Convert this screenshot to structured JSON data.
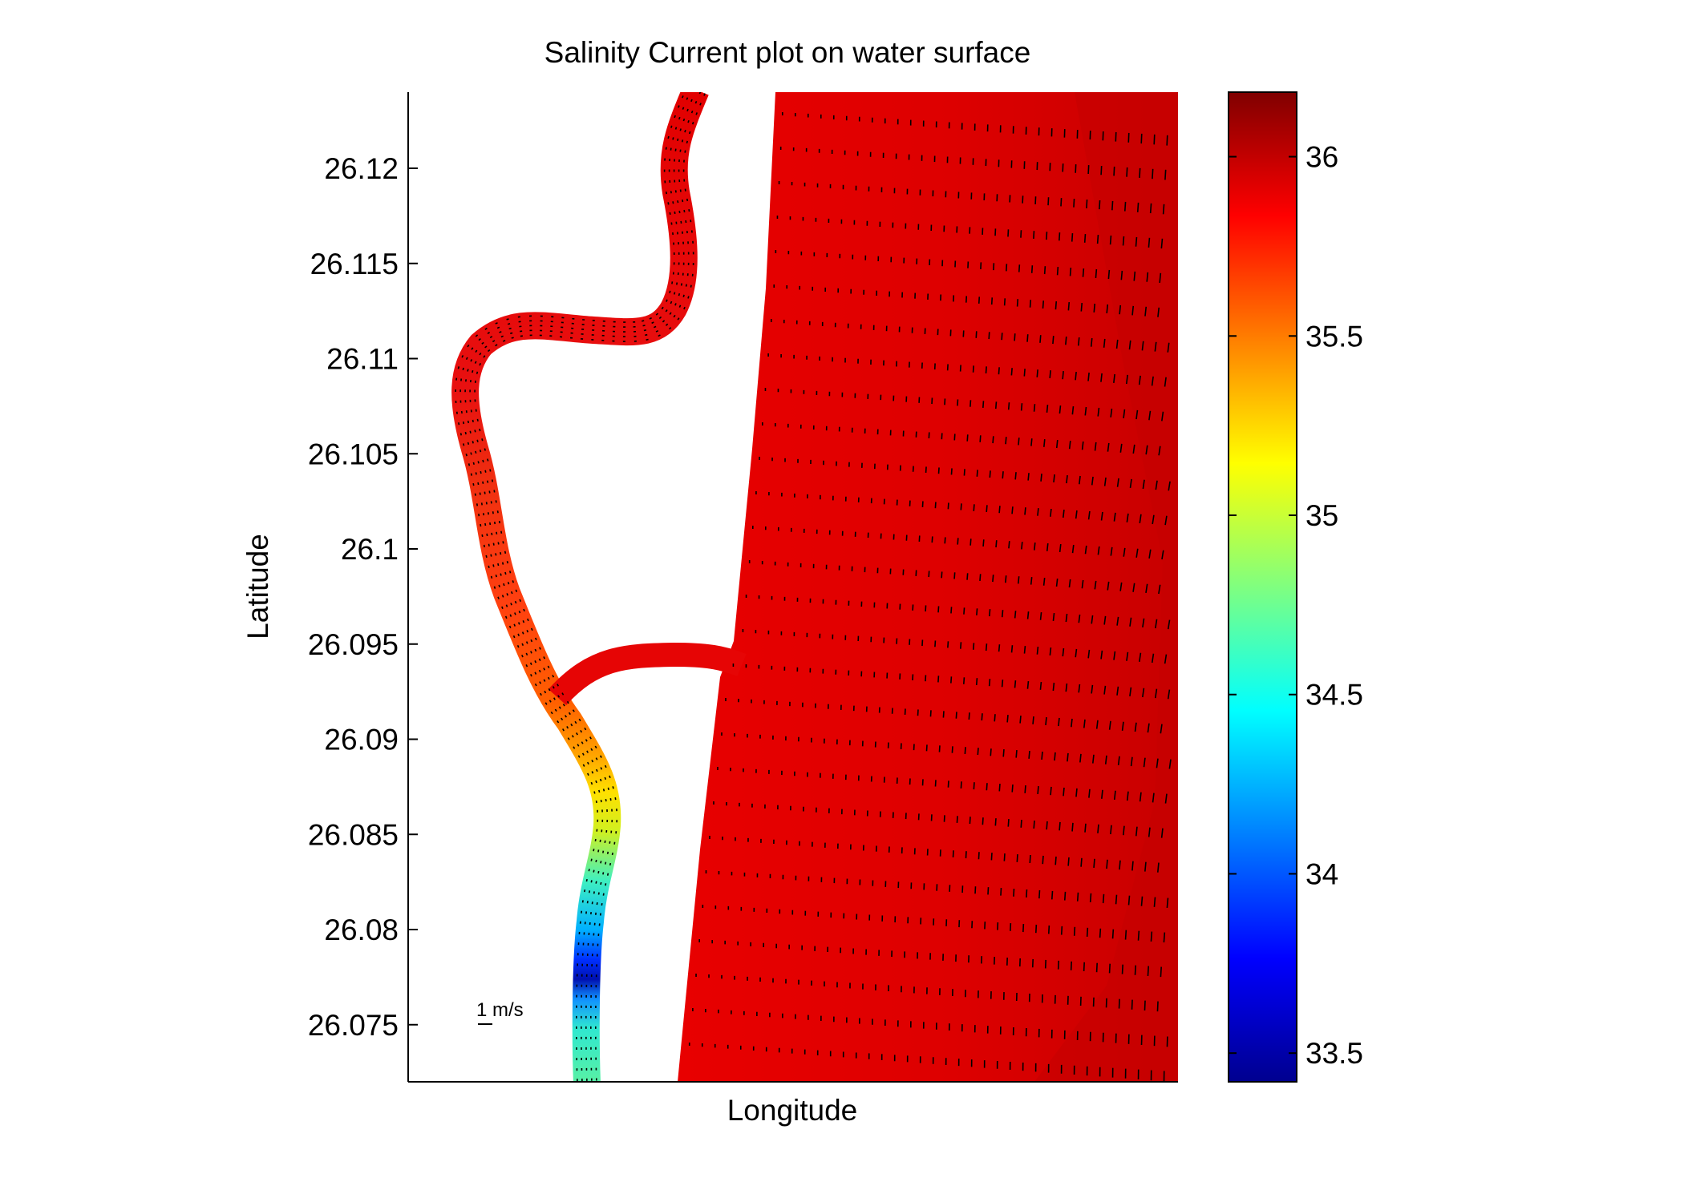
{
  "chart_data": {
    "type": "heatmap",
    "title": "Salinity Current plot on water surface",
    "xlabel": "Longitude",
    "ylabel": "Latitude",
    "x_ticks": [],
    "y_ticks": [
      "26.12",
      "26.115",
      "26.11",
      "26.105",
      "26.1",
      "26.095",
      "26.09",
      "26.085",
      "26.08",
      "26.075"
    ],
    "y_tick_values": [
      26.12,
      26.115,
      26.11,
      26.105,
      26.1,
      26.095,
      26.09,
      26.085,
      26.08,
      26.075
    ],
    "ylim": [
      26.072,
      26.124
    ],
    "grid": false,
    "colormap": "jet",
    "colorbar": {
      "range": [
        33.42,
        36.18
      ],
      "ticks": [
        "33.5",
        "34",
        "34.5",
        "35",
        "35.5",
        "36"
      ],
      "tick_values": [
        33.5,
        34.0,
        34.5,
        35.0,
        35.5,
        36.0
      ]
    },
    "vector_scale_label": "1 m/s",
    "salinity_along_river_channel": [
      {
        "latitude": 26.072,
        "salinity": 34.85
      },
      {
        "latitude": 26.075,
        "salinity": 34.8
      },
      {
        "latitude": 26.077,
        "salinity": 34.2
      },
      {
        "latitude": 26.078,
        "salinity": 33.6
      },
      {
        "latitude": 26.08,
        "salinity": 34.1
      },
      {
        "latitude": 26.082,
        "salinity": 34.5
      },
      {
        "latitude": 26.084,
        "salinity": 34.9
      },
      {
        "latitude": 26.086,
        "salinity": 35.15
      },
      {
        "latitude": 26.088,
        "salinity": 35.3
      },
      {
        "latitude": 26.09,
        "salinity": 35.6
      },
      {
        "latitude": 26.093,
        "salinity": 35.75
      },
      {
        "latitude": 26.1,
        "salinity": 35.85
      },
      {
        "latitude": 26.108,
        "salinity": 35.9
      },
      {
        "latitude": 26.112,
        "salinity": 36.0
      },
      {
        "latitude": 26.124,
        "salinity": 36.0
      }
    ],
    "salinity_open_water": [
      36.0,
      36.1
    ]
  }
}
